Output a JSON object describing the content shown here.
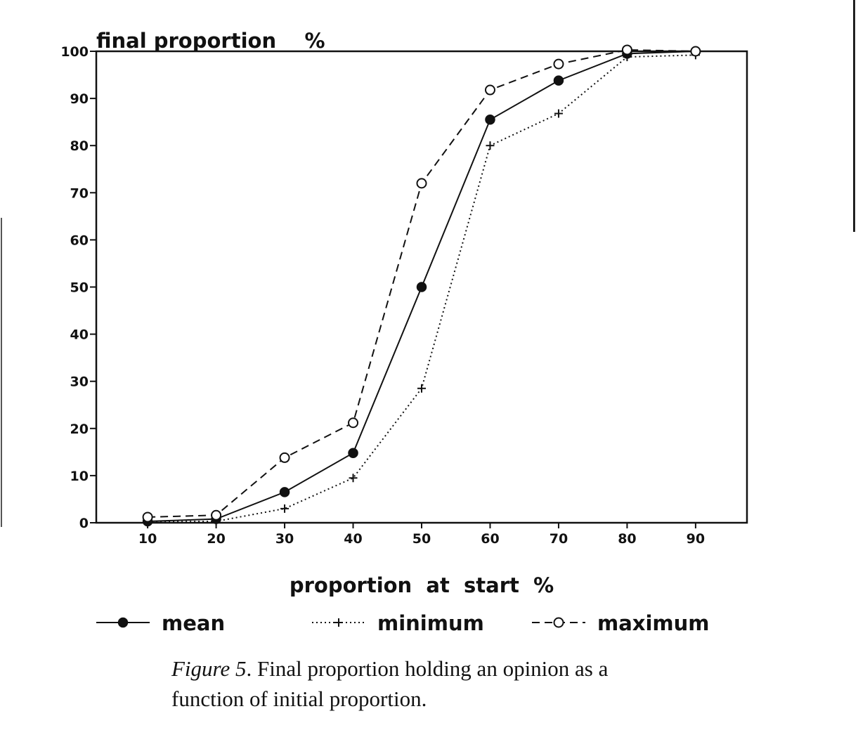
{
  "chart_data": {
    "type": "line",
    "ylabel": "final proportion    %",
    "xlabel": "proportion  at  start  %",
    "x": [
      10,
      20,
      30,
      40,
      50,
      60,
      70,
      80,
      90
    ],
    "x_ticks": [
      "10",
      "20",
      "30",
      "40",
      "50",
      "60",
      "70",
      "80",
      "90"
    ],
    "y_ticks": [
      "0",
      "10",
      "20",
      "30",
      "40",
      "50",
      "60",
      "70",
      "80",
      "90",
      "100"
    ],
    "xlim": [
      2.5,
      97.5
    ],
    "ylim": [
      0,
      100
    ],
    "grid": false,
    "legend_position": "bottom",
    "series": [
      {
        "name": "mean",
        "style": "solid",
        "marker": "filled-circle",
        "values": [
          0.3,
          0.8,
          6.5,
          14.8,
          50,
          85.5,
          93.8,
          99.5,
          100
        ]
      },
      {
        "name": "minimum",
        "style": "dotted",
        "marker": "plus",
        "values": [
          0.2,
          0.3,
          3.0,
          9.5,
          28.5,
          80,
          86.8,
          98.8,
          99.2
        ]
      },
      {
        "name": "maximum",
        "style": "dashed",
        "marker": "open-circle",
        "values": [
          1.2,
          1.6,
          13.8,
          21.2,
          72,
          91.8,
          97.3,
          100.3,
          100
        ]
      }
    ]
  },
  "caption": {
    "lead": "Figure 5",
    "text": ". Final proportion holding an opinion as a function of initial proportion."
  }
}
